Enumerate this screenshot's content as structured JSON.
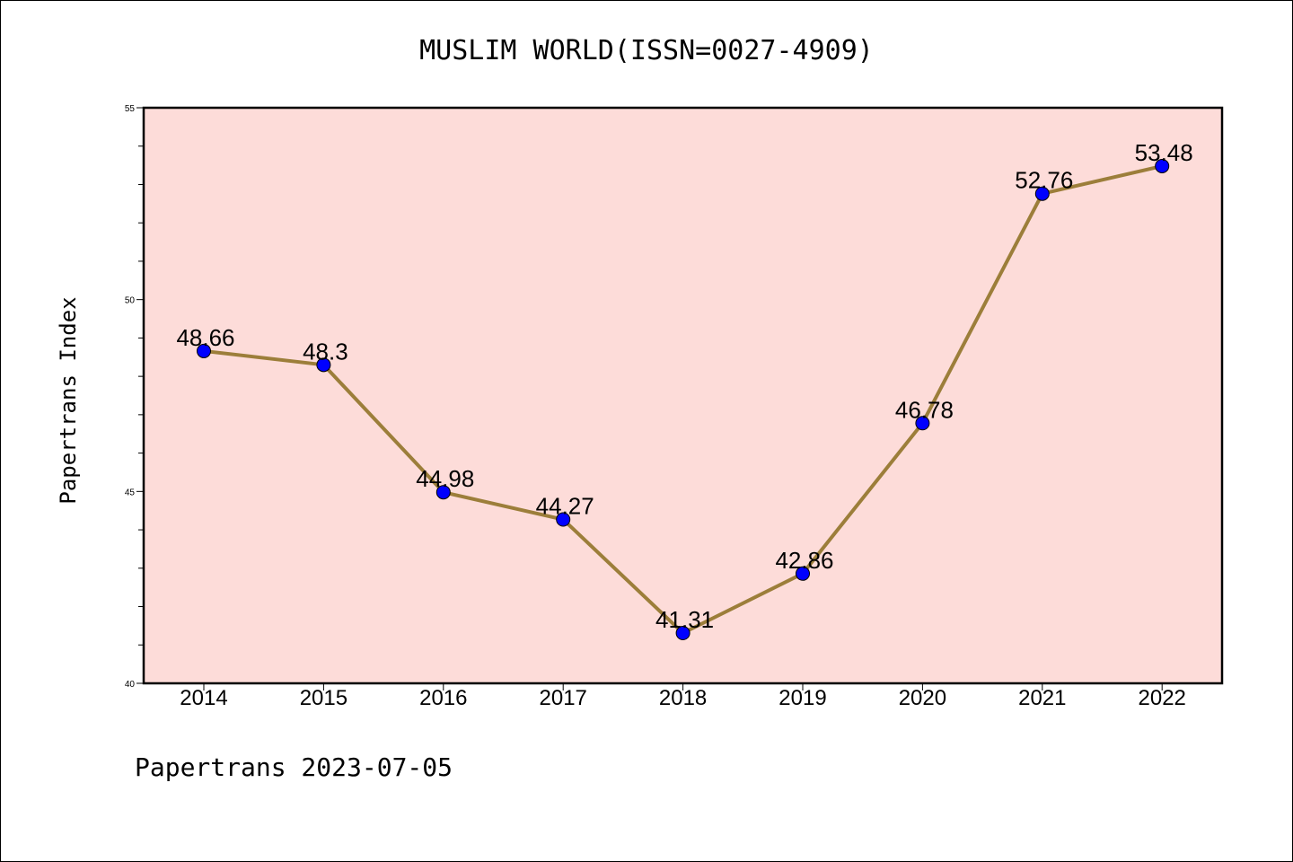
{
  "footer": "Papertrans 2023-07-05",
  "colors": {
    "plot_background": "#fddcd9",
    "line": "#9c7e3a",
    "marker": "#0000ff"
  },
  "chart_data": {
    "type": "line",
    "title": "MUSLIM WORLD(ISSN=0027-4909)",
    "xlabel": "",
    "ylabel": "Papertrans Index",
    "categories": [
      "2014",
      "2015",
      "2016",
      "2017",
      "2018",
      "2019",
      "2020",
      "2021",
      "2022"
    ],
    "values": [
      48.66,
      48.3,
      44.98,
      44.27,
      41.31,
      42.86,
      46.78,
      52.76,
      53.48
    ],
    "data_labels": [
      "48.66",
      "48.3",
      "44.98",
      "44.27",
      "41.31",
      "42.86",
      "46.78",
      "52.76",
      "53.48"
    ],
    "ylim": [
      40,
      55
    ],
    "yticks": [
      40,
      45,
      50,
      55
    ],
    "grid": false,
    "legend": "none"
  }
}
